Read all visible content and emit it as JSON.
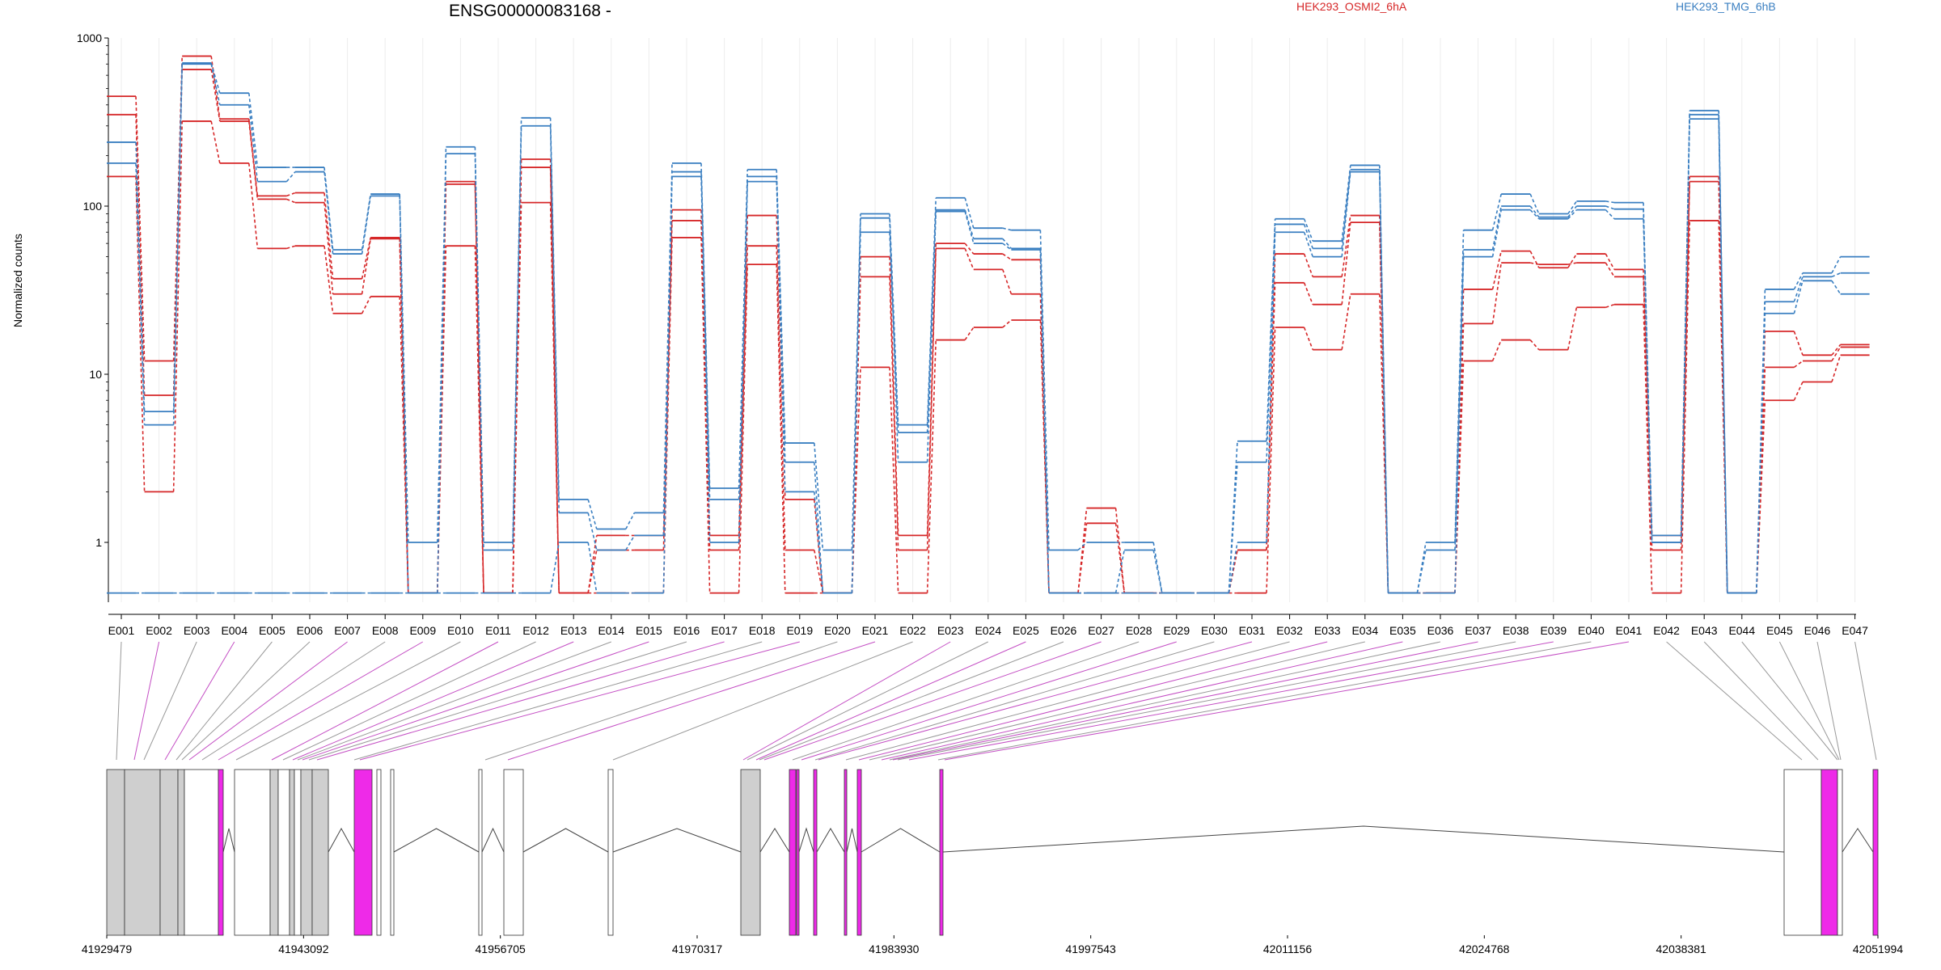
{
  "chart_data": {
    "type": "line",
    "title": "ENSG00000083168 -",
    "ylabel": "Normalized counts",
    "yscale": "log",
    "ylim": [
      0.5,
      1000
    ],
    "yticks": [
      1,
      10,
      100,
      1000
    ],
    "ytick_labels": [
      "1",
      "10",
      "100",
      "1000"
    ],
    "categories": [
      "E001",
      "E002",
      "E003",
      "E004",
      "E005",
      "E006",
      "E007",
      "E008",
      "E009",
      "E010",
      "E011",
      "E012",
      "E013",
      "E014",
      "E015",
      "E016",
      "E017",
      "E018",
      "E019",
      "E020",
      "E021",
      "E022",
      "E023",
      "E024",
      "E025",
      "E026",
      "E027",
      "E028",
      "E029",
      "E030",
      "E031",
      "E032",
      "E033",
      "E034",
      "E035",
      "E036",
      "E037",
      "E038",
      "E039",
      "E040",
      "E041",
      "E042",
      "E043",
      "E044",
      "E045",
      "E046",
      "E047"
    ],
    "legend": [
      {
        "label": "HEK293_OSMI2_6hA",
        "color": "#d62728"
      },
      {
        "label": "HEK293_TMG_6hB",
        "color": "#3a7fc1"
      }
    ],
    "series": [
      {
        "group": "HEK293_OSMI2_6hA",
        "color": "#d62728",
        "values": [
          450,
          12,
          780,
          330,
          115,
          120,
          37,
          65,
          0.5,
          140,
          0.5,
          190,
          0.5,
          1.1,
          1.1,
          95,
          1.1,
          88,
          1.8,
          0.5,
          50,
          1.1,
          60,
          52,
          48,
          0.5,
          1.6,
          0.5,
          0.5,
          0.5,
          0.9,
          52,
          38,
          88,
          0.5,
          0.5,
          32,
          54,
          43,
          52,
          42,
          1.1,
          150,
          0.5,
          18,
          13,
          15
        ]
      },
      {
        "group": "HEK293_OSMI2_6hA",
        "color": "#d62728",
        "values": [
          350,
          7.5,
          650,
          320,
          110,
          105,
          30,
          64,
          0.5,
          135,
          0.5,
          170,
          0.5,
          0.9,
          0.9,
          82,
          0.9,
          58,
          0.9,
          0.5,
          38,
          0.9,
          56,
          42,
          30,
          0.5,
          1.3,
          0.5,
          0.5,
          0.5,
          0.9,
          35,
          26,
          80,
          0.5,
          0.5,
          20,
          46,
          45,
          46,
          38,
          0.9,
          140,
          0.5,
          11,
          12,
          14.5
        ]
      },
      {
        "group": "HEK293_OSMI2_6hA",
        "color": "#d62728",
        "values": [
          150,
          2,
          320,
          180,
          56,
          58,
          23,
          29,
          0.5,
          58,
          0.5,
          105,
          0.5,
          0.5,
          0.5,
          65,
          0.5,
          45,
          0.5,
          0.5,
          11,
          0.5,
          16,
          19,
          21,
          0.5,
          0.5,
          0.5,
          0.5,
          0.5,
          0.5,
          19,
          14,
          30,
          0.5,
          0.5,
          12,
          16,
          14,
          25,
          26,
          0.5,
          82,
          0.5,
          7,
          9,
          13
        ]
      },
      {
        "group": "HEK293_TMG_6hB",
        "color": "#3a7fc1",
        "values": [
          240,
          6,
          710,
          470,
          170,
          170,
          55,
          118,
          1,
          225,
          1,
          335,
          1.8,
          1.2,
          1.5,
          180,
          2.1,
          165,
          3.9,
          0.9,
          90,
          5,
          112,
          74,
          72,
          0.9,
          1,
          1,
          0.5,
          0.5,
          4,
          84,
          62,
          175,
          0.5,
          1,
          72,
          118,
          90,
          107,
          105,
          1.1,
          370,
          0.5,
          32,
          40,
          50
        ]
      },
      {
        "group": "HEK293_TMG_6hB",
        "color": "#3a7fc1",
        "values": [
          180,
          5,
          700,
          400,
          140,
          160,
          52,
          115,
          0.5,
          205,
          0.9,
          300,
          1.5,
          0.9,
          1.1,
          160,
          1.8,
          150,
          3,
          0.5,
          70,
          4.5,
          95,
          64,
          56,
          0.5,
          0.5,
          0.9,
          0.5,
          0.5,
          3,
          78,
          56,
          165,
          0.5,
          0.9,
          55,
          100,
          86,
          100,
          96,
          1,
          350,
          0.5,
          27,
          38,
          40
        ]
      },
      {
        "group": "HEK293_TMG_6hB",
        "color": "#3a7fc1",
        "values": [
          0.5,
          0.5,
          0.5,
          0.5,
          0.5,
          0.5,
          0.5,
          0.5,
          0.5,
          0.5,
          0.5,
          0.5,
          1,
          0.5,
          0.5,
          150,
          1,
          140,
          2,
          0.5,
          85,
          3,
          93,
          60,
          55,
          0.5,
          0.5,
          0.5,
          0.5,
          0.5,
          1,
          70,
          50,
          160,
          0.5,
          0.5,
          50,
          95,
          84,
          95,
          84,
          1,
          330,
          0.5,
          23,
          36,
          30
        ]
      }
    ],
    "gene_model": {
      "genomic_ticks": [
        "41929479",
        "41943092",
        "41956705",
        "41970317",
        "41983930",
        "41997543",
        "42011156",
        "42024768",
        "42038381",
        "42051994"
      ]
    }
  }
}
